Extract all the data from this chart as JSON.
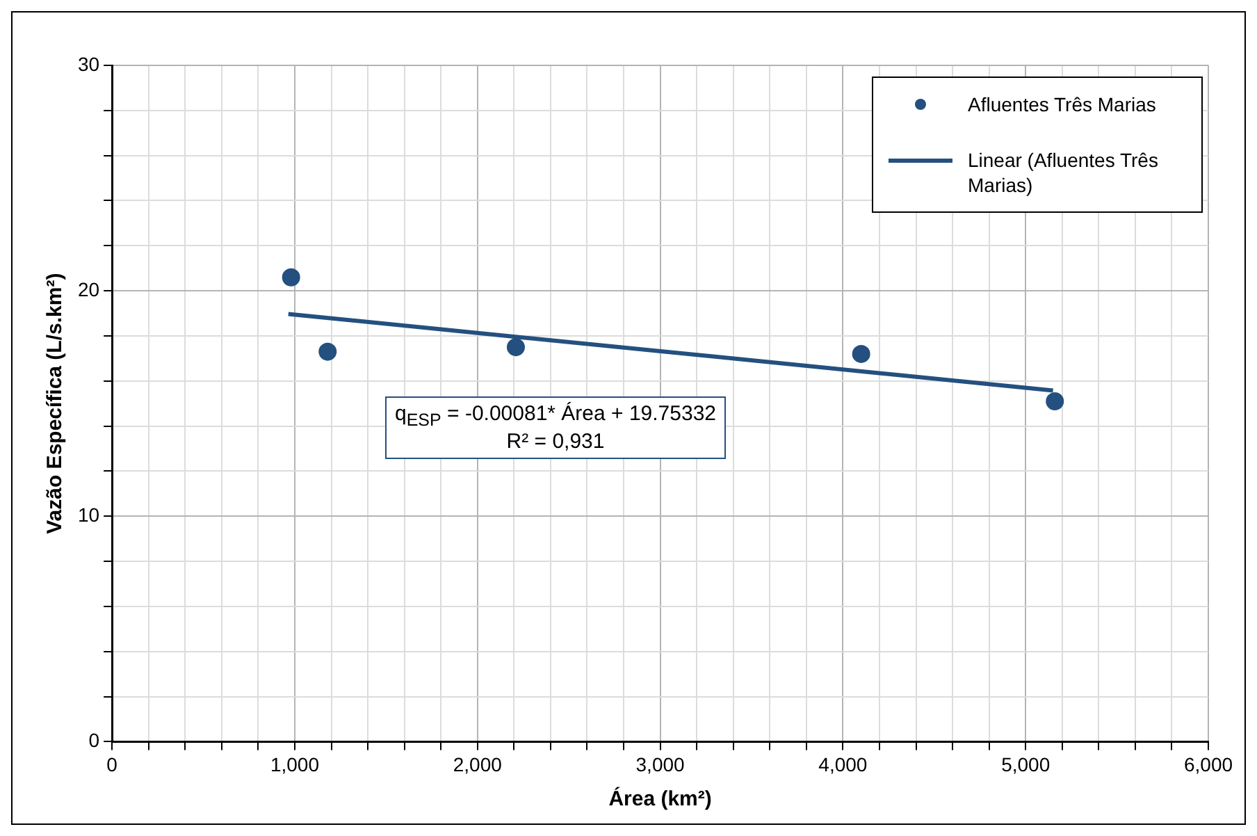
{
  "chart_data": {
    "type": "scatter",
    "xlabel": "Área (km²)",
    "ylabel": "Vazão Específica (L/s.km²)",
    "xlim": [
      0,
      6000
    ],
    "ylim": [
      0,
      30
    ],
    "xticks": [
      0,
      {
        "value": 200,
        "label": null
      },
      {
        "value": 400,
        "label": null
      },
      {
        "value": 600,
        "label": null
      },
      {
        "value": 800,
        "label": null
      },
      {
        "value": 1000,
        "label": "1,000"
      },
      {
        "value": 1200,
        "label": null
      },
      {
        "value": 1400,
        "label": null
      },
      {
        "value": 1600,
        "label": null
      },
      {
        "value": 1800,
        "label": null
      },
      {
        "value": 2000,
        "label": "2,000"
      },
      {
        "value": 2200,
        "label": null
      },
      {
        "value": 2400,
        "label": null
      },
      {
        "value": 2600,
        "label": null
      },
      {
        "value": 2800,
        "label": null
      },
      {
        "value": 3000,
        "label": "3,000"
      },
      {
        "value": 3200,
        "label": null
      },
      {
        "value": 3400,
        "label": null
      },
      {
        "value": 3600,
        "label": null
      },
      {
        "value": 3800,
        "label": null
      },
      {
        "value": 4000,
        "label": "4,000"
      },
      {
        "value": 4200,
        "label": null
      },
      {
        "value": 4400,
        "label": null
      },
      {
        "value": 4600,
        "label": null
      },
      {
        "value": 4800,
        "label": null
      },
      {
        "value": 5000,
        "label": "5,000"
      },
      {
        "value": 5200,
        "label": null
      },
      {
        "value": 5400,
        "label": null
      },
      {
        "value": 5600,
        "label": null
      },
      {
        "value": 5800,
        "label": null
      },
      {
        "value": 6000,
        "label": "6,000"
      }
    ],
    "yticks": [
      0,
      {
        "value": 2,
        "label": null
      },
      {
        "value": 4,
        "label": null
      },
      {
        "value": 6,
        "label": null
      },
      {
        "value": 8,
        "label": null
      },
      10,
      {
        "value": 12,
        "label": null
      },
      {
        "value": 14,
        "label": null
      },
      {
        "value": 16,
        "label": null
      },
      {
        "value": 18,
        "label": null
      },
      20,
      {
        "value": 22,
        "label": null
      },
      {
        "value": 24,
        "label": null
      },
      {
        "value": 26,
        "label": null
      },
      {
        "value": 28,
        "label": null
      },
      30
    ],
    "grid": true,
    "legend": "top right",
    "series": [
      {
        "name": "Afluentes Três Marias",
        "type": "scatter",
        "marker": "circle",
        "color": "#24507f",
        "x": [
          980,
          1180,
          2210,
          4100,
          5160
        ],
        "values": [
          20.6,
          17.3,
          17.5,
          17.2,
          15.1
        ]
      },
      {
        "name": "Linear (Afluentes Três Marias)",
        "type": "line",
        "marker": "none",
        "line_style": "solid",
        "color": "#24507f",
        "x": [
          965,
          5150
        ],
        "values": [
          18.97,
          15.58
        ]
      }
    ],
    "annotations": [
      {
        "text": "q$_{ESP}$ = -0.00081* Área + 19.75332\nR² = 0,931"
      }
    ]
  }
}
